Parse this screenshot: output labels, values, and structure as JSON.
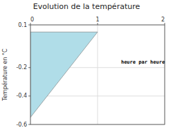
{
  "chart_data": {
    "type": "area",
    "title": "Evolution de la température",
    "ylabel": "Température en °C",
    "x": [
      0,
      1,
      0
    ],
    "values": [
      0.05,
      0.05,
      -0.55
    ],
    "color": "#b0dde8",
    "annotations": [
      {
        "text": "heure par heure",
        "x": 1.35,
        "y": -0.15
      }
    ],
    "xlim": [
      0,
      2
    ],
    "ylim": [
      -0.6,
      0.1
    ],
    "xticks": [
      0,
      1,
      2
    ],
    "yticks": [
      -0.6,
      -0.4,
      -0.2,
      0.1
    ],
    "grid": true
  }
}
